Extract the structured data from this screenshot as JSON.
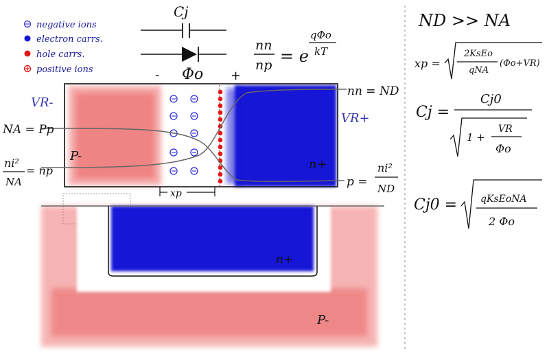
{
  "legend": {
    "items": [
      {
        "label": "negative ions",
        "color": "#3a3ad0"
      },
      {
        "label": "electron carrs.",
        "color": "#1515d8"
      },
      {
        "label": "hole carrs.",
        "color": "#e01818"
      },
      {
        "label": "positive ions",
        "color": "#e01818"
      }
    ]
  },
  "top": {
    "cap_label": "Cj",
    "minus": "-",
    "phi": "Φo",
    "plus": "+",
    "ratio_num": "nn",
    "ratio_den": "np",
    "eq": "= e",
    "exp_num": "qΦo",
    "exp_den": "kT"
  },
  "junction": {
    "vr_minus": "VR-",
    "vr_plus": "VR+",
    "p_label": "P-",
    "n_label": "n+",
    "na_pp": "NA = Pp",
    "ni_num": "ni²",
    "ni_den": "NA",
    "ni_rhs": "= np",
    "nn_nd": "nn = ND",
    "p_eq": "p =",
    "p_num": "ni²",
    "p_den": "ND",
    "xp": "xp"
  },
  "bottom": {
    "n_label": "n+",
    "p_label": "P-"
  },
  "right": {
    "nd_na": "ND >> NA",
    "xp_lhs": "xp =",
    "xp_num": "2KsEo",
    "xp_den": "qNA",
    "xp_tail": "(Φo+VR)",
    "cj_lhs": "Cj =",
    "cj_num": "Cj0",
    "cj_one": "1 +",
    "cj_vr": "VR",
    "cj_phi": "Φo",
    "cj0_lhs": "Cj0 =",
    "cj0_num": "qKsEoNA",
    "cj0_den": "2 Φo"
  },
  "colors": {
    "red": "#e23a3a",
    "blue": "#1212d6",
    "ink": "#111111",
    "gray": "#555555"
  }
}
